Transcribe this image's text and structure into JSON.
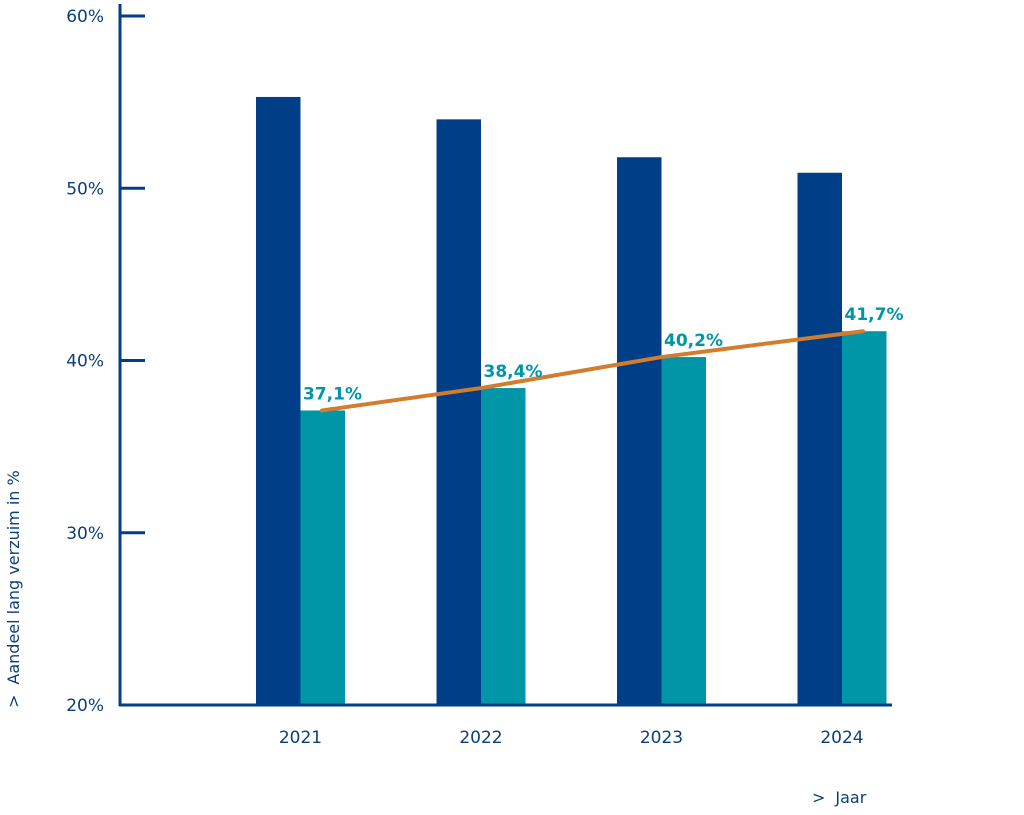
{
  "chart_data": {
    "type": "bar",
    "categories": [
      "2021",
      "2022",
      "2023",
      "2024"
    ],
    "series": [
      {
        "kind": "bar",
        "color": "#003f87",
        "values": [
          55.3,
          54.0,
          51.8,
          50.9
        ]
      },
      {
        "kind": "bar",
        "color": "#0096a8",
        "values": [
          37.1,
          38.4,
          40.2,
          41.7
        ],
        "labels": [
          "37,1%",
          "38,4%",
          "40,2%",
          "41,7%"
        ]
      },
      {
        "kind": "line",
        "color": "#d27d2d",
        "values": [
          37.1,
          38.4,
          40.2,
          41.7
        ]
      }
    ],
    "ylim": [
      20,
      60
    ],
    "yticks": [
      20,
      30,
      40,
      50,
      60
    ],
    "ytick_labels": [
      "20%",
      "30%",
      "40%",
      "50%",
      "60%"
    ],
    "xlabel": "Jaar",
    "ylabel": "Aandeel lang verzuim in %",
    "axis_marker": ">",
    "grid": false,
    "colors": {
      "axis": "#003f87",
      "text": "#0a3f7a"
    }
  }
}
